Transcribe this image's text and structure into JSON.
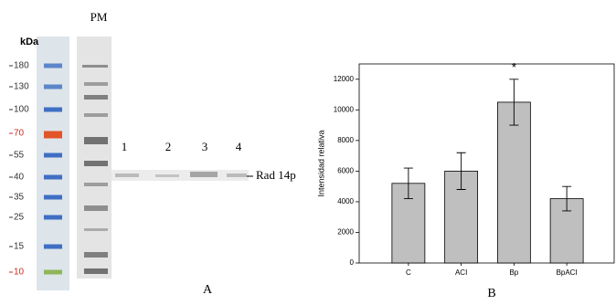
{
  "blot": {
    "kda_label": "kDa",
    "pm_label": "PM",
    "markers": [
      "180",
      "130",
      "100",
      "70",
      "55",
      "40",
      "35",
      "25",
      "15",
      "10"
    ],
    "marker_colors": [
      "#5b86c9",
      "#5b86c9",
      "#3f6fc4",
      "#e2542a",
      "#3f6fc4",
      "#3f6fc4",
      "#3f6fc4",
      "#3f6fc4",
      "#3f6fc4",
      "#8fb65a"
    ],
    "marker_label_colors": [
      "#333",
      "#333",
      "#333",
      "#d02a1c",
      "#333",
      "#333",
      "#333",
      "#333",
      "#333",
      "#d02a1c"
    ],
    "lanes": [
      "1",
      "2",
      "3",
      "4"
    ],
    "band_label": "Rad 14p",
    "panel_label": "A"
  },
  "chart_data": {
    "type": "bar",
    "ylabel": "Intensidad relativa",
    "categories": [
      "C",
      "ACI",
      "Bp",
      "BpACI"
    ],
    "values": [
      5200,
      6000,
      10500,
      4200
    ],
    "errors": [
      1000,
      1200,
      1500,
      800
    ],
    "color": "#bfbfbf",
    "ylim": [
      0,
      13000
    ],
    "yticks": [
      0,
      2000,
      4000,
      6000,
      8000,
      10000,
      12000
    ],
    "annotation": "*",
    "annotation_category": 2,
    "panel_label": "B"
  }
}
